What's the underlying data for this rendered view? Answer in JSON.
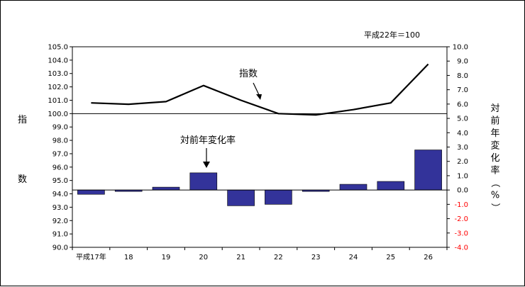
{
  "chart_data": {
    "type": "bar+line",
    "base_note": "平成22年＝100",
    "categories": [
      "平成17年",
      "18",
      "19",
      "20",
      "21",
      "22",
      "23",
      "24",
      "25",
      "26"
    ],
    "index_series": {
      "name": "指数",
      "axis": "left",
      "values": [
        100.8,
        100.7,
        100.9,
        102.1,
        101.0,
        100.0,
        99.9,
        100.3,
        100.8,
        103.7
      ]
    },
    "change_series": {
      "name": "対前年変化率",
      "axis": "right",
      "color": "#33339a",
      "values": [
        -0.3,
        -0.1,
        0.2,
        1.2,
        -1.1,
        -1.0,
        -0.1,
        0.4,
        0.6,
        2.8
      ]
    },
    "left_axis": {
      "label": "指数",
      "ylim": [
        90.0,
        105.0
      ],
      "ticks": [
        "105.0",
        "104.0",
        "103.0",
        "102.0",
        "101.0",
        "100.0",
        "99.0",
        "98.0",
        "97.0",
        "96.0",
        "95.0",
        "94.0",
        "93.0",
        "92.0",
        "91.0",
        "90.0"
      ]
    },
    "right_axis": {
      "label": "対前年変化率（%）",
      "ylim": [
        -4.0,
        10.0
      ],
      "ticks": [
        "10.0",
        "9.0",
        "8.0",
        "7.0",
        "6.0",
        "5.0",
        "4.0",
        "3.0",
        "2.0",
        "1.0",
        "0.0",
        "-1.0",
        "-2.0",
        "-3.0",
        "-4.0"
      ],
      "negative_tick_color": "#ff0000"
    },
    "reference_line": {
      "left_value": 100.0
    },
    "annotations": {
      "index": "指数",
      "change": "対前年変化率"
    }
  }
}
